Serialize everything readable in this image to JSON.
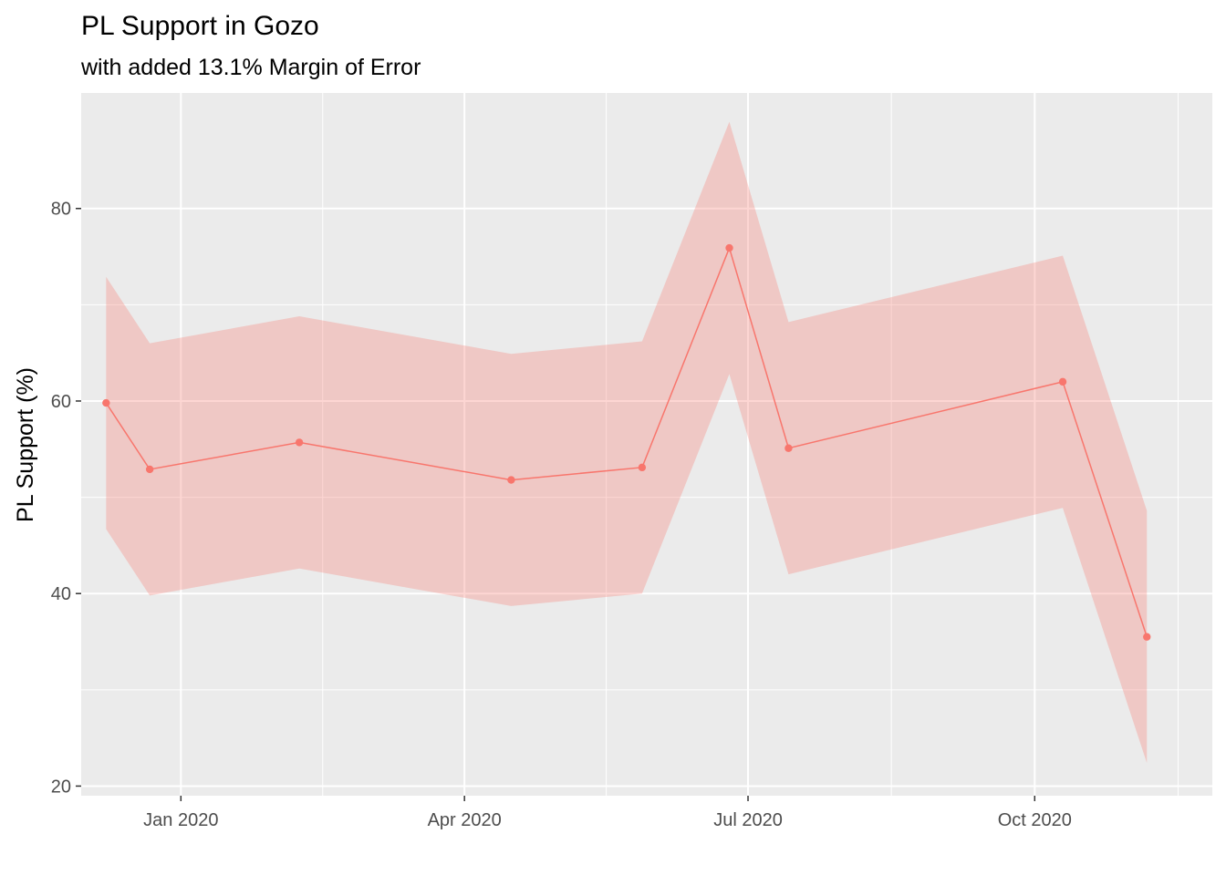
{
  "chart_data": {
    "type": "line",
    "title": "PL Support in Gozo",
    "subtitle": "with added 13.1% Margin of Error",
    "xlabel": "",
    "ylabel": "PL Support (%)",
    "x_ticks": [
      "Jan 2020",
      "Apr 2020",
      "Jul 2020",
      "Oct 2020"
    ],
    "y_ticks": [
      20,
      40,
      60,
      80
    ],
    "ylim": [
      19,
      92
    ],
    "xlim": [
      "2019-11-30",
      "2020-11-27"
    ],
    "margin_of_error": 13.1,
    "colors": {
      "line": "#F8766D",
      "ribbon": "#F8766D",
      "panel": "#EBEBEB",
      "grid": "#FFFFFF"
    },
    "grid": true,
    "legend": "none",
    "series": [
      {
        "x": [
          "2019-12-08",
          "2019-12-22",
          "2020-02-08",
          "2020-04-16",
          "2020-05-28",
          "2020-06-25",
          "2020-07-14",
          "2020-10-10",
          "2020-11-06"
        ],
        "values": [
          59.8,
          52.9,
          55.7,
          51.8,
          53.1,
          75.9,
          55.1,
          62.0,
          35.5
        ]
      }
    ]
  }
}
